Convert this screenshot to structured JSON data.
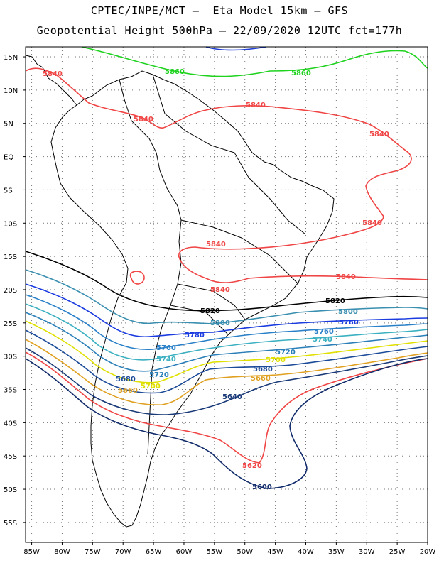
{
  "header": {
    "line1": "CPTEC/INPE/MCT –  Eta Model 15km – GFS",
    "line2": "Geopotential Height 500hPa – 22/09/2020 12UTC fct=177h"
  },
  "map": {
    "lat_labels": [
      "15N",
      "10N",
      "5N",
      "EQ",
      "5S",
      "10S",
      "15S",
      "20S",
      "25S",
      "30S",
      "35S",
      "40S",
      "45S",
      "50S",
      "55S"
    ],
    "lon_labels": [
      "85W",
      "80W",
      "75W",
      "70W",
      "65W",
      "60W",
      "55W",
      "50W",
      "45W",
      "40W",
      "35W",
      "30W",
      "25W",
      "20W"
    ],
    "lat_values": [
      15,
      10,
      5,
      0,
      -5,
      -10,
      -15,
      -20,
      -25,
      -30,
      -35,
      -40,
      -45,
      -50,
      -55
    ],
    "lon_values": [
      -85,
      -80,
      -75,
      -70,
      -65,
      -60,
      -55,
      -50,
      -45,
      -40,
      -35,
      -30,
      -25,
      -20
    ],
    "lat_range": [
      -58,
      16.5
    ],
    "lon_range": [
      -86,
      -20
    ],
    "grid": true
  },
  "contours": [
    {
      "value": 5860,
      "color": "#1f3fd6",
      "labels": []
    },
    {
      "value": 5860,
      "color": "#1ed21e",
      "labels": [
        "5860",
        "5860"
      ]
    },
    {
      "value": 5840,
      "color": "#f04545",
      "labels": [
        "5840",
        "5840",
        "5840",
        "5840",
        "5840",
        "5840",
        "5840",
        "5840"
      ]
    },
    {
      "value": 5820,
      "color": "#000000",
      "labels": [
        "5820",
        "5820"
      ]
    },
    {
      "value": 5800,
      "color": "#3a8fb0",
      "labels": [
        "5800",
        "5800"
      ]
    },
    {
      "value": 5780,
      "color": "#1a3be0",
      "labels": [
        "5780",
        "5780"
      ]
    },
    {
      "value": 5760,
      "color": "#2a80c8",
      "labels": [
        "5760",
        "5760"
      ]
    },
    {
      "value": 5740,
      "color": "#3ab0c0",
      "labels": [
        "5740",
        "5740"
      ]
    },
    {
      "value": 5720,
      "color": "#2a7fb8",
      "labels": [
        "5720",
        "5720"
      ]
    },
    {
      "value": 5700,
      "color": "#e0e000",
      "labels": [
        "5700",
        "5700"
      ]
    },
    {
      "value": 5680,
      "color": "#1a4a98",
      "labels": [
        "5680",
        "5680"
      ]
    },
    {
      "value": 5660,
      "color": "#e0a020",
      "labels": [
        "5660",
        "5660"
      ]
    },
    {
      "value": 5640,
      "color": "#1a3a78",
      "labels": [
        "5640"
      ]
    },
    {
      "value": 5620,
      "color": "#f04545",
      "labels": [
        "5620"
      ]
    },
    {
      "value": 5600,
      "color": "#102a6a",
      "labels": [
        "5600"
      ]
    }
  ]
}
